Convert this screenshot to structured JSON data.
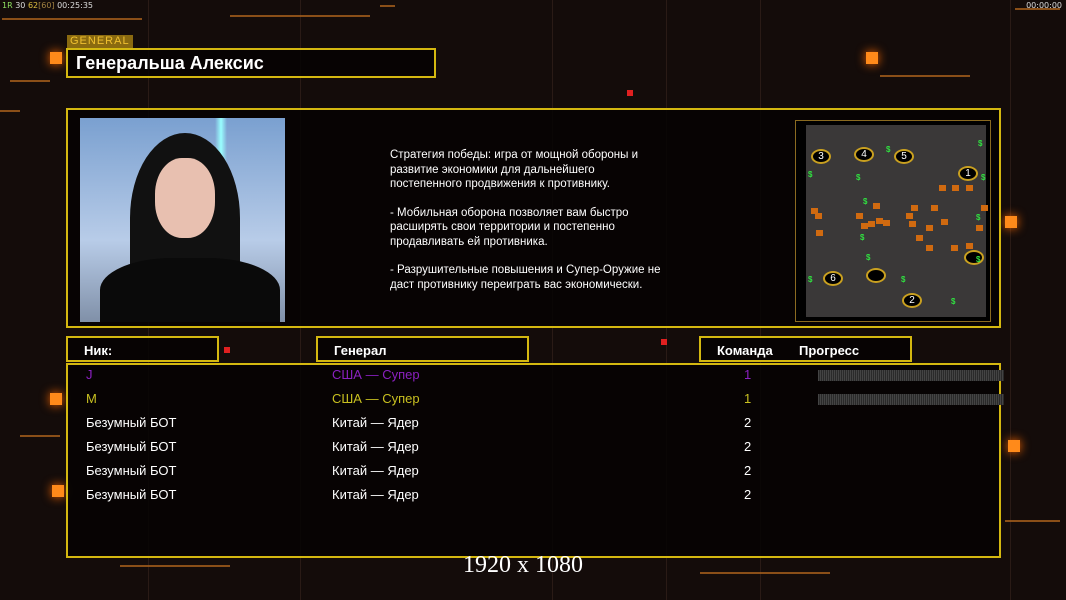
{
  "hud": {
    "fps_label": "1R",
    "fps": "30",
    "fps2": "62",
    "fps_cap": "[60]",
    "time": "00:25:35",
    "clock": "00:00:00"
  },
  "general_tag": "GENERAL",
  "general_name": "Генеральша Алексис",
  "description": [
    "Стратегия победы: игра от мощной обороны и\n развитие экономики для дальнейшего\n постепенного продвижения к противнику.",
    "- Мобильная оборона позволяет вам быстро\n расширять свои территории и постепенно\n продавливать ей противника.",
    "- Разрушительные повышения и Супер-Оружие не\n даст противнику переиграть вас экономически."
  ],
  "map": {
    "start_positions": [
      "1",
      "2",
      "3",
      "4",
      "5",
      "6"
    ],
    "cash_symbol": "$"
  },
  "columns": {
    "nick": "Ник:",
    "general": "Генерал",
    "team": "Команда",
    "progress": "Прогресс"
  },
  "players": [
    {
      "nick": "J",
      "general": "США — Супер",
      "team": "1",
      "color": "#8a20c0",
      "progress": 0
    },
    {
      "nick": "M",
      "general": "США — Супер",
      "team": "1",
      "color": "#c8c020",
      "progress": 0
    },
    {
      "nick": "Безумный БОТ",
      "general": "Китай — Ядер",
      "team": "2",
      "color": "#ffffff"
    },
    {
      "nick": "Безумный БОТ",
      "general": "Китай — Ядер",
      "team": "2",
      "color": "#ffffff"
    },
    {
      "nick": "Безумный БОТ",
      "general": "Китай — Ядер",
      "team": "2",
      "color": "#ffffff"
    },
    {
      "nick": "Безумный БОТ",
      "general": "Китай — Ядер",
      "team": "2",
      "color": "#ffffff"
    }
  ],
  "resolution": "1920 x 1080",
  "colors": {
    "accent": "#d4b810",
    "orange": "#ff8a1a"
  }
}
